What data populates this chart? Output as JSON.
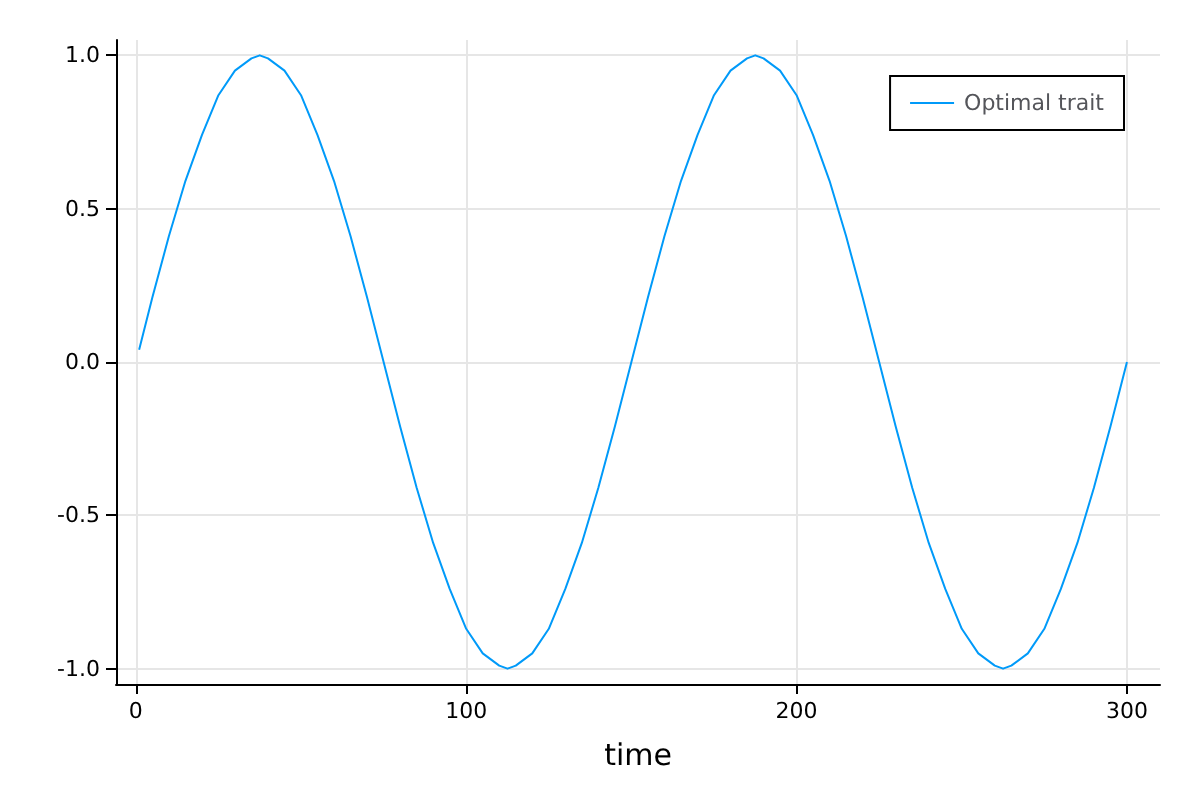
{
  "chart_data": {
    "type": "line",
    "xlabel": "time",
    "x": [
      1,
      5,
      10,
      15,
      20,
      25,
      30,
      35,
      37.5,
      40,
      45,
      50,
      55,
      60,
      65,
      70,
      75,
      80,
      85,
      90,
      95,
      100,
      105,
      110,
      112.5,
      115,
      120,
      125,
      130,
      135,
      140,
      145,
      150,
      155,
      160,
      165,
      170,
      175,
      180,
      185,
      187.5,
      190,
      195,
      200,
      205,
      210,
      215,
      220,
      225,
      230,
      235,
      240,
      245,
      250,
      255,
      260,
      262.5,
      265,
      270,
      275,
      280,
      285,
      290,
      295,
      300
    ],
    "series": [
      {
        "name": "Optimal trait",
        "color": "#009af9",
        "values": [
          0.04,
          0.21,
          0.41,
          0.59,
          0.74,
          0.87,
          0.95,
          0.99,
          1,
          0.99,
          0.95,
          0.87,
          0.74,
          0.59,
          0.41,
          0.21,
          0,
          -0.21,
          -0.41,
          -0.59,
          -0.74,
          -0.87,
          -0.95,
          -0.99,
          -1,
          -0.99,
          -0.95,
          -0.87,
          -0.74,
          -0.59,
          -0.41,
          -0.21,
          0,
          0.21,
          0.41,
          0.59,
          0.74,
          0.87,
          0.95,
          0.99,
          1,
          0.99,
          0.95,
          0.87,
          0.74,
          0.59,
          0.41,
          0.21,
          0,
          -0.21,
          -0.41,
          -0.59,
          -0.74,
          -0.87,
          -0.95,
          -0.99,
          -1,
          -0.99,
          -0.95,
          -0.87,
          -0.74,
          -0.59,
          -0.41,
          -0.21,
          0
        ]
      }
    ],
    "xlim": [
      -6,
      310
    ],
    "xticks": [
      0,
      100,
      200,
      300
    ],
    "ylim": [
      -1.05,
      1.05
    ],
    "yticks": [
      {
        "value": -1,
        "label": "-1.0"
      },
      {
        "value": -0.5,
        "label": "-0.5"
      },
      {
        "value": 0,
        "label": "0.0"
      },
      {
        "value": 0.5,
        "label": "0.5"
      },
      {
        "value": 1,
        "label": "1.0"
      }
    ],
    "grid": true,
    "legend": "top right",
    "marker": "none",
    "line_style": "solid"
  }
}
